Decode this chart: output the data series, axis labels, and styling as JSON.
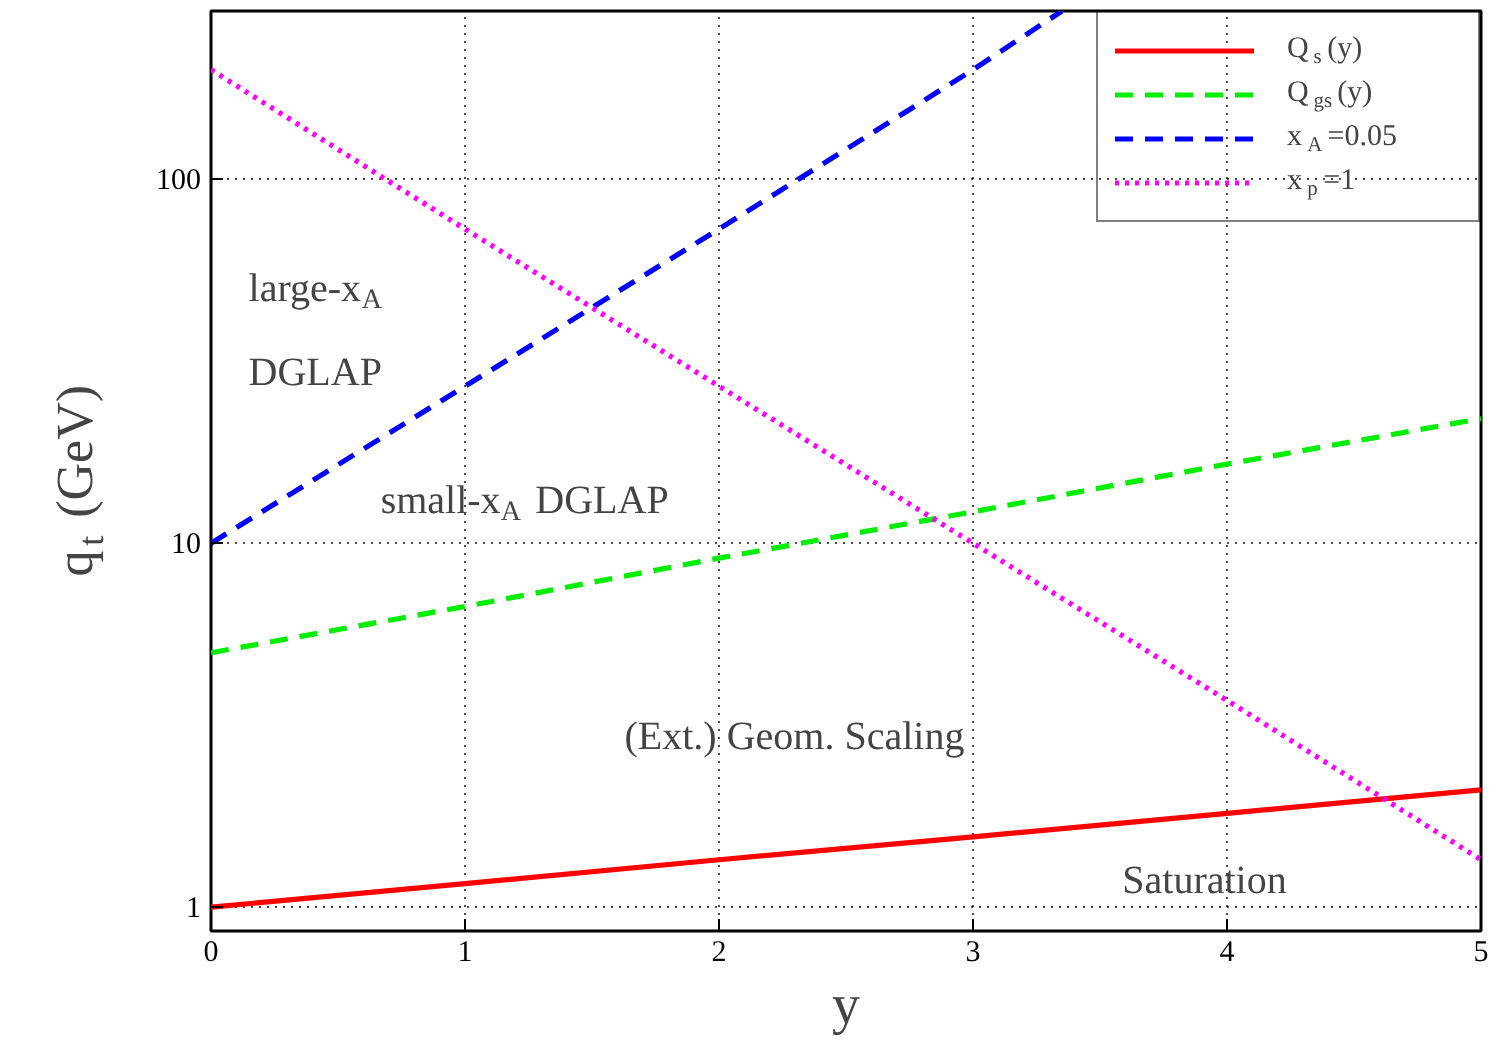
{
  "chart_data": {
    "type": "line",
    "xlabel": "y",
    "ylabel": "q$_{t}$ (GeV)",
    "log": "y",
    "grid": true,
    "legend": "top right",
    "xlim": [
      0,
      5
    ],
    "ylim": [
      0.86,
      290
    ],
    "xticks": [
      0,
      1,
      2,
      3,
      4,
      5
    ],
    "yticks": [
      1,
      10,
      100
    ],
    "series": [
      {
        "name": "Q$_{s}$(y)",
        "color": "#ff0000",
        "line_style": "solid",
        "x": [
          0,
          1,
          2,
          3,
          4,
          5
        ],
        "values": [
          1,
          1.16,
          1.35,
          1.56,
          1.81,
          2.1
        ]
      },
      {
        "name": "Q$_{gs}$(y)",
        "color": "#00ee00",
        "line_style": "dashed",
        "x": [
          0,
          1,
          2,
          3,
          4,
          5
        ],
        "values": [
          5,
          6.7,
          9.1,
          12.2,
          16.5,
          22
        ]
      },
      {
        "name": "x$_{A}$=0.05",
        "color": "#0000ff",
        "line_style": "dashed",
        "x": [
          0,
          1,
          2,
          3,
          3.35
        ],
        "values": [
          10,
          27,
          73,
          200,
          290
        ]
      },
      {
        "name": "x$_{p}$=1",
        "color": "#ff00ff",
        "line_style": "dotted",
        "x": [
          0,
          1,
          2,
          3,
          4,
          5
        ],
        "values": [
          200,
          73,
          27,
          10,
          3.7,
          1.35
        ]
      }
    ],
    "annotations": [
      "large-x$_{A}$\nDGLAP",
      "small-x$_{A}$ DGLAP",
      "(Ext.) Geom. Scaling",
      "Saturation"
    ]
  }
}
